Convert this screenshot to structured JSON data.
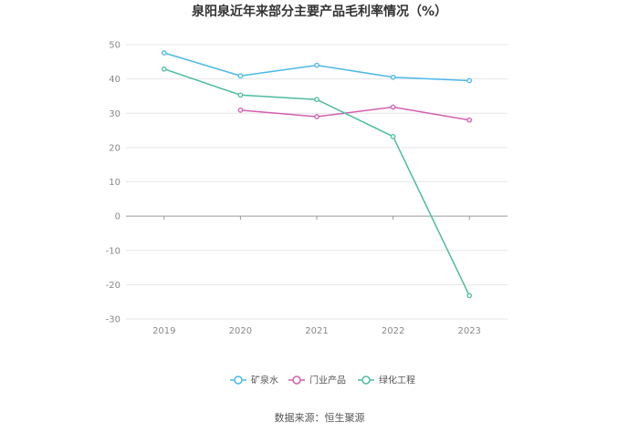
{
  "chart_data": {
    "type": "line",
    "title": "泉阳泉近年来部分主要产品毛利率情况（%）",
    "categories": [
      "2019",
      "2020",
      "2021",
      "2022",
      "2023"
    ],
    "ylim": [
      -30,
      50
    ],
    "yticks": [
      50,
      40,
      30,
      20,
      10,
      0,
      -10,
      -20,
      -30
    ],
    "grid": true,
    "legend_position": "bottom",
    "series": [
      {
        "name": "矿泉水",
        "color": "#4db8ea",
        "values": [
          47.6,
          40.9,
          44.0,
          40.5,
          39.5
        ]
      },
      {
        "name": "门业产品",
        "color": "#d45fb0",
        "values": [
          null,
          30.9,
          29.0,
          31.8,
          28.0
        ]
      },
      {
        "name": "绿化工程",
        "color": "#4cbca0",
        "values": [
          42.9,
          35.3,
          34.0,
          23.2,
          -23.2
        ]
      }
    ]
  },
  "source_text": "数据来源：恒生聚源"
}
